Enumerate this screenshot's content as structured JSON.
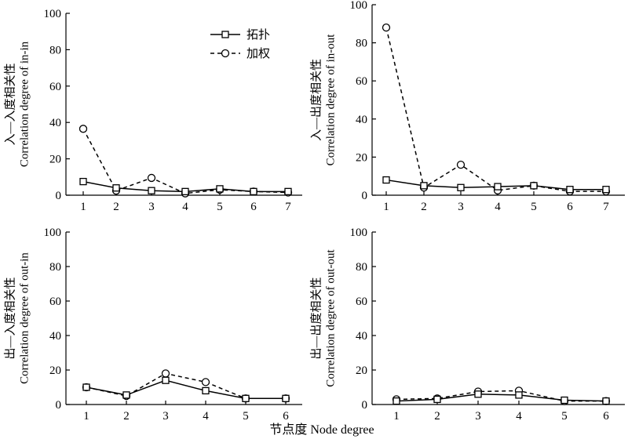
{
  "xlabel": "节点度 Node degree",
  "legend": {
    "placement": "top-right of first panel",
    "entries": [
      "拓扑",
      "加权"
    ]
  },
  "chart_data": [
    {
      "type": "line",
      "ylabel_cn": "入—入度相关性",
      "ylabel_en": "Correlation degree of in-in",
      "x": [
        1,
        2,
        3,
        4,
        5,
        6,
        7
      ],
      "ylim": [
        0,
        100
      ],
      "yticks": [
        0,
        20,
        40,
        60,
        80,
        100
      ],
      "series": [
        {
          "name": "拓扑",
          "marker": "square",
          "dash": "solid",
          "values": [
            7.5,
            4,
            2.5,
            2,
            3.5,
            2,
            2
          ]
        },
        {
          "name": "加权",
          "marker": "circle",
          "dash": "dashed",
          "values": [
            36.5,
            2.5,
            9.5,
            1,
            3,
            2,
            1.5
          ]
        }
      ]
    },
    {
      "type": "line",
      "ylabel_cn": "入—出度相关性",
      "ylabel_en": "Correlation degree of in-out",
      "x": [
        1,
        2,
        3,
        4,
        5,
        6,
        7
      ],
      "ylim": [
        0,
        100
      ],
      "yticks": [
        0,
        20,
        40,
        60,
        80,
        100
      ],
      "series": [
        {
          "name": "拓扑",
          "marker": "square",
          "dash": "solid",
          "values": [
            8,
            5,
            4,
            4.5,
            5,
            3,
            3
          ]
        },
        {
          "name": "加权",
          "marker": "circle",
          "dash": "dashed",
          "values": [
            88,
            4,
            16,
            2.5,
            5,
            2,
            2
          ]
        }
      ]
    },
    {
      "type": "line",
      "ylabel_cn": "出—入度相关性",
      "ylabel_en": "Correlation degree of out-in",
      "x": [
        1,
        2,
        3,
        4,
        5,
        6
      ],
      "ylim": [
        0,
        100
      ],
      "yticks": [
        0,
        20,
        40,
        60,
        80,
        100
      ],
      "series": [
        {
          "name": "拓扑",
          "marker": "square",
          "dash": "solid",
          "values": [
            10,
            5.5,
            14,
            8,
            3.5,
            3.5
          ]
        },
        {
          "name": "加权",
          "marker": "circle",
          "dash": "dashed",
          "values": [
            10,
            5,
            18,
            13,
            3.5,
            3.5
          ]
        }
      ]
    },
    {
      "type": "line",
      "ylabel_cn": "出—出度相关性",
      "ylabel_en": "Correlation degree of out-out",
      "x": [
        1,
        2,
        3,
        4,
        5,
        6
      ],
      "ylim": [
        0,
        100
      ],
      "yticks": [
        0,
        20,
        40,
        60,
        80,
        100
      ],
      "series": [
        {
          "name": "拓扑",
          "marker": "square",
          "dash": "solid",
          "values": [
            2,
            3,
            6,
            5.5,
            2.5,
            2
          ]
        },
        {
          "name": "加权",
          "marker": "circle",
          "dash": "dashed",
          "values": [
            3,
            3.5,
            7.5,
            8,
            2,
            2
          ]
        }
      ]
    }
  ]
}
